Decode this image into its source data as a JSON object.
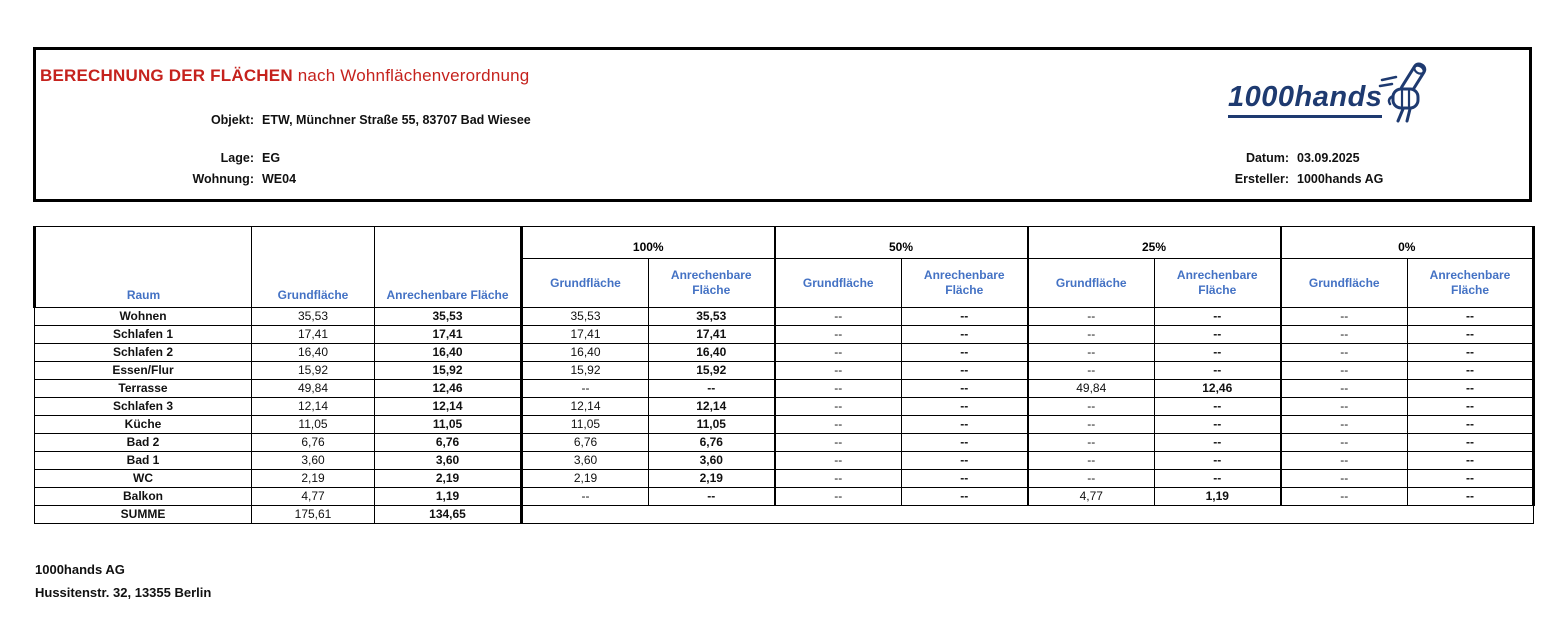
{
  "letterhead": {
    "title_main": "BERECHNUNG DER FLÄCHEN",
    "title_rest": " nach Wohnflächenverordnung",
    "objekt_label": "Objekt:",
    "objekt_value": "ETW, Münchner Straße 55, 83707 Bad Wiesee",
    "lage_label": "Lage:",
    "lage_value": "EG",
    "wohnung_label": "Wohnung:",
    "wohnung_value": "WE04",
    "datum_label": "Datum:",
    "datum_value": "03.09.2025",
    "ersteller_label": "Ersteller:",
    "ersteller_value": "1000hands AG",
    "logo_text": "1000hands"
  },
  "table": {
    "headers": {
      "raum": "Raum",
      "grundflaeche": "Grundfläche",
      "anrechenbare": "Anrechenbare Fläche"
    },
    "groups": [
      "100%",
      "50%",
      "25%",
      "0%"
    ],
    "sub_headers": {
      "grundflaeche": "Grundfläche",
      "anrechenbare": "Anrechenbare Fläche"
    },
    "rows": [
      {
        "raum": "Wohnen",
        "cells": [
          "35,53",
          "35,53",
          "35,53",
          "35,53",
          "--",
          "--",
          "--",
          "--",
          "--",
          "--"
        ]
      },
      {
        "raum": "Schlafen 1",
        "cells": [
          "17,41",
          "17,41",
          "17,41",
          "17,41",
          "--",
          "--",
          "--",
          "--",
          "--",
          "--"
        ]
      },
      {
        "raum": "Schlafen 2",
        "cells": [
          "16,40",
          "16,40",
          "16,40",
          "16,40",
          "--",
          "--",
          "--",
          "--",
          "--",
          "--"
        ]
      },
      {
        "raum": "Essen/Flur",
        "cells": [
          "15,92",
          "15,92",
          "15,92",
          "15,92",
          "--",
          "--",
          "--",
          "--",
          "--",
          "--"
        ]
      },
      {
        "raum": "Terrasse",
        "cells": [
          "49,84",
          "12,46",
          "--",
          "--",
          "--",
          "--",
          "49,84",
          "12,46",
          "--",
          "--"
        ]
      },
      {
        "raum": "Schlafen 3",
        "cells": [
          "12,14",
          "12,14",
          "12,14",
          "12,14",
          "--",
          "--",
          "--",
          "--",
          "--",
          "--"
        ]
      },
      {
        "raum": "Küche",
        "cells": [
          "11,05",
          "11,05",
          "11,05",
          "11,05",
          "--",
          "--",
          "--",
          "--",
          "--",
          "--"
        ]
      },
      {
        "raum": "Bad 2",
        "cells": [
          "6,76",
          "6,76",
          "6,76",
          "6,76",
          "--",
          "--",
          "--",
          "--",
          "--",
          "--"
        ]
      },
      {
        "raum": "Bad 1",
        "cells": [
          "3,60",
          "3,60",
          "3,60",
          "3,60",
          "--",
          "--",
          "--",
          "--",
          "--",
          "--"
        ]
      },
      {
        "raum": "WC",
        "cells": [
          "2,19",
          "2,19",
          "2,19",
          "2,19",
          "--",
          "--",
          "--",
          "--",
          "--",
          "--"
        ]
      },
      {
        "raum": "Balkon",
        "cells": [
          "4,77",
          "1,19",
          "--",
          "--",
          "--",
          "--",
          "4,77",
          "1,19",
          "--",
          "--"
        ]
      }
    ],
    "summe": {
      "label": "SUMME",
      "grundflaeche": "175,61",
      "anrechenbare": "134,65"
    }
  },
  "footer": {
    "company": "1000hands AG",
    "address": "Hussitenstr. 32, 13355 Berlin"
  },
  "colors": {
    "title_red": "#c5221d",
    "header_blue": "#4472c4",
    "logo_navy": "#1e3a70"
  }
}
